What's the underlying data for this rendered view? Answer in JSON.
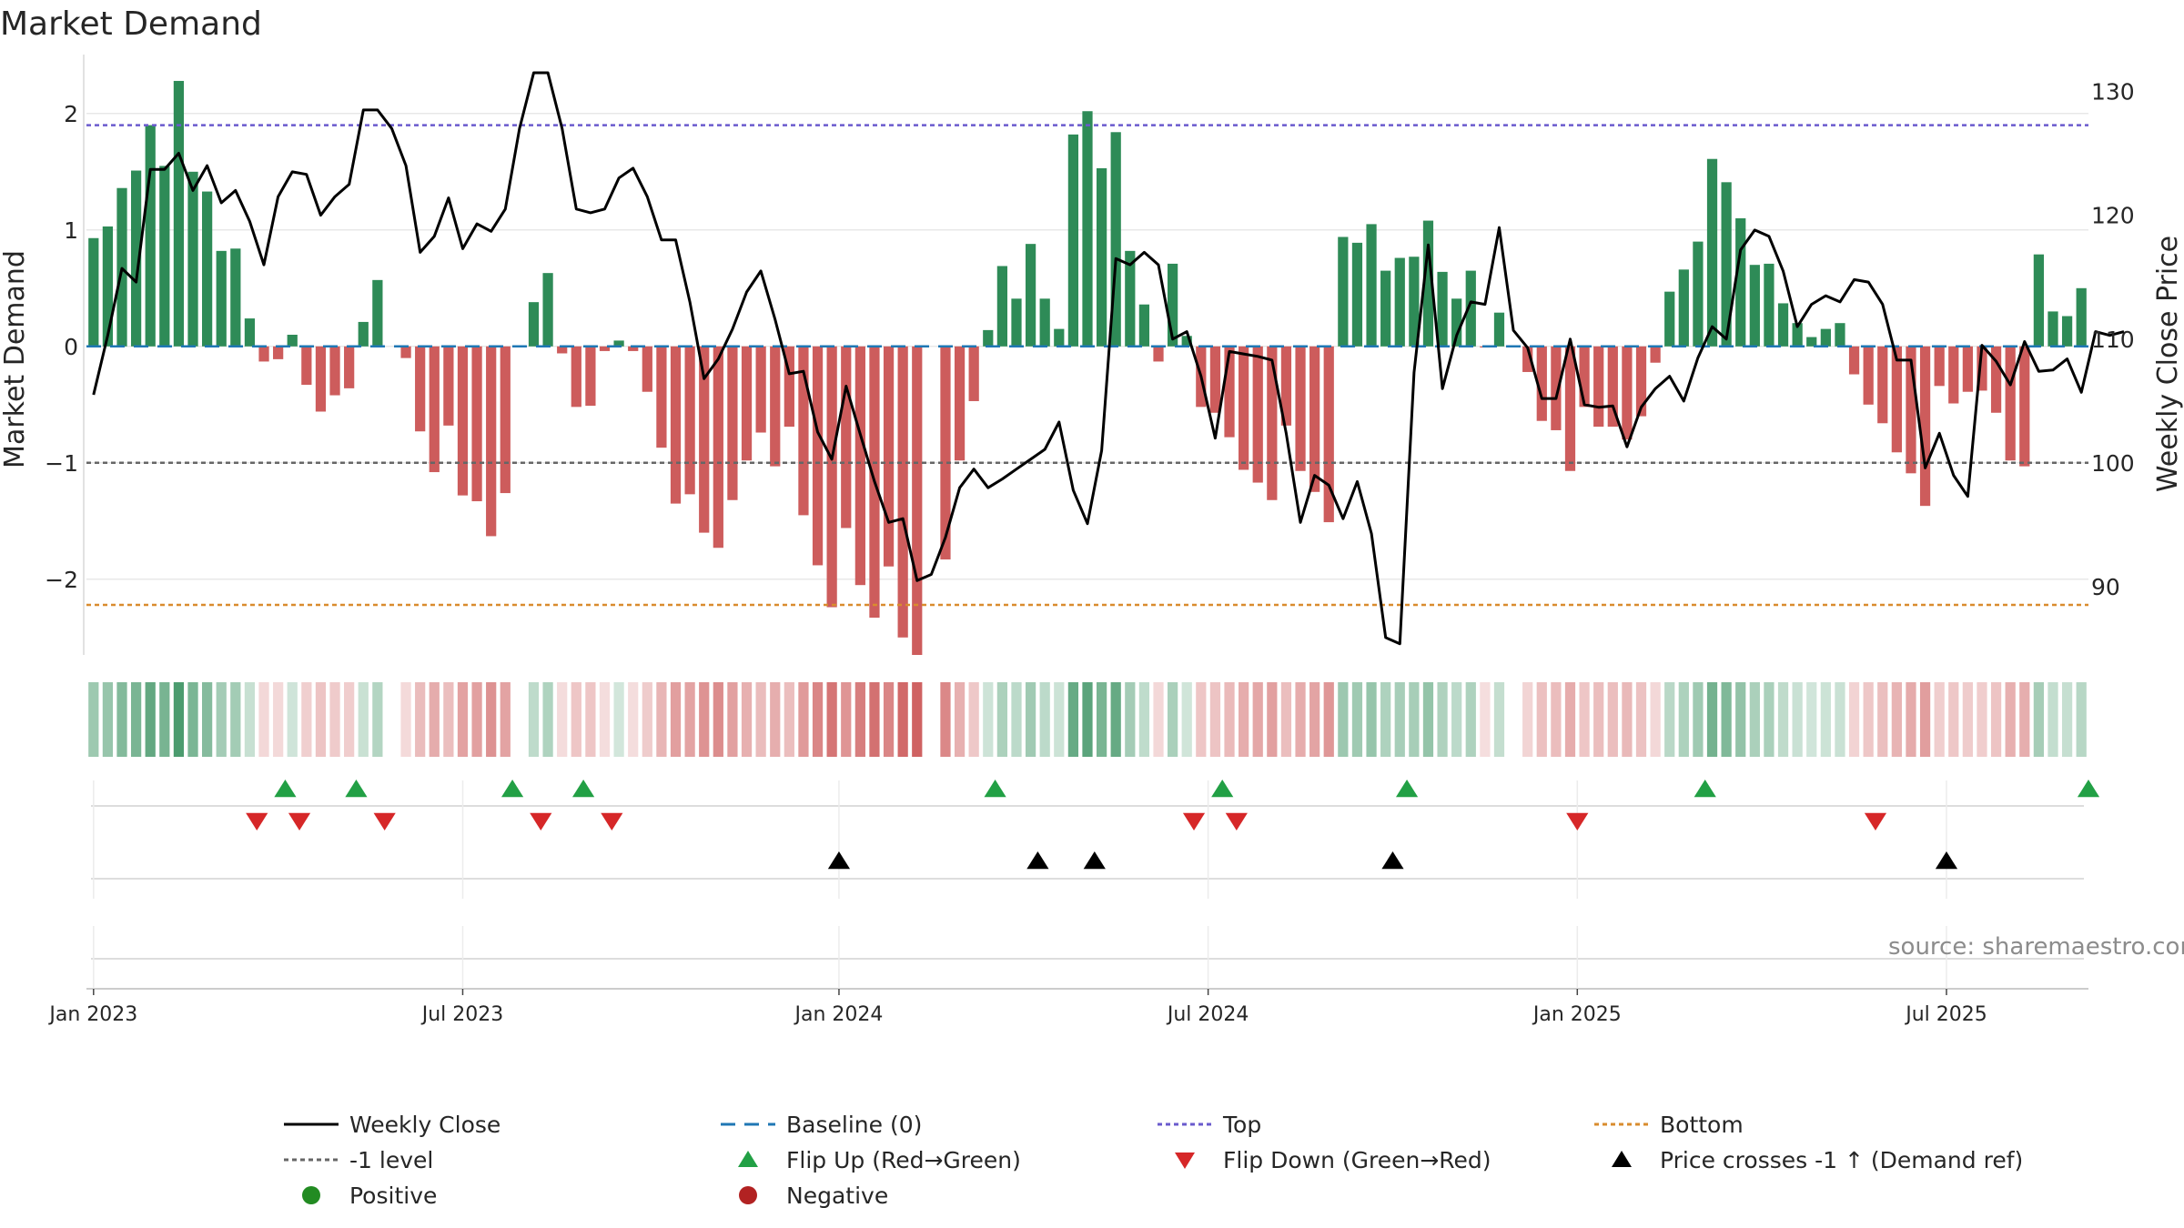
{
  "chart_data": {
    "type": "bar",
    "title": "Market Demand",
    "ylabel_left": "Market Demand",
    "ylabel_right": "Weekly Close Price",
    "source": "source: sharemaestro.com",
    "ylim_left": [
      -2.65,
      2.35
    ],
    "ylim_right": [
      84.5,
      131.5
    ],
    "yticks_left": [
      {
        "v": 2,
        "label": "2"
      },
      {
        "v": 1,
        "label": "1"
      },
      {
        "v": 0,
        "label": "0"
      },
      {
        "v": -1,
        "label": "−1"
      },
      {
        "v": -2,
        "label": "−2"
      }
    ],
    "yticks_right": [
      {
        "v": 130,
        "label": "130"
      },
      {
        "v": 120,
        "label": "120"
      },
      {
        "v": 110,
        "label": "110"
      },
      {
        "v": 100,
        "label": "100"
      },
      {
        "v": 90,
        "label": "90"
      }
    ],
    "xticks": [
      {
        "week": 1,
        "label": "Jan 2023"
      },
      {
        "week": 27,
        "label": "Jul 2023"
      },
      {
        "week": 53.5,
        "label": "Jan 2024"
      },
      {
        "week": 79.5,
        "label": "Jul 2024"
      },
      {
        "week": 105.5,
        "label": "Jan 2025"
      },
      {
        "week": 131.5,
        "label": "Jul 2025"
      }
    ],
    "reference_lines": {
      "top": 1.9,
      "minus_one": -1.0,
      "baseline": 0,
      "bottom": -2.22
    },
    "colors": {
      "positive": "#2e8b57",
      "negative": "#cd5c5c",
      "price": "#000000",
      "top": "#6a5acd",
      "bottom": "#d98c2e",
      "minus_one": "#666666",
      "baseline": "#1f77b4",
      "flip_up": "#22a045",
      "flip_down": "#d62728",
      "cross": "#000000",
      "dot_positive": "#228b22",
      "dot_negative": "#b22222"
    },
    "series": [
      {
        "name": "Market Demand",
        "values": [
          0.93,
          1.03,
          1.36,
          1.51,
          1.9,
          1.55,
          2.28,
          1.5,
          1.33,
          0.82,
          0.84,
          0.24,
          -0.13,
          -0.11,
          0.1,
          -0.33,
          -0.56,
          -0.42,
          -0.36,
          0.21,
          0.57,
          0.0,
          -0.1,
          -0.73,
          -1.08,
          -0.68,
          -1.28,
          -1.33,
          -1.63,
          -1.26,
          0.0,
          0.38,
          0.63,
          -0.06,
          -0.52,
          -0.51,
          -0.04,
          0.05,
          -0.04,
          -0.39,
          -0.87,
          -1.35,
          -1.27,
          -1.6,
          -1.73,
          -1.32,
          -0.98,
          -0.74,
          -1.03,
          -0.69,
          -1.45,
          -1.88,
          -2.24,
          -1.56,
          -2.05,
          -2.33,
          -1.89,
          -2.5,
          -2.65,
          0.0,
          -1.83,
          -0.98,
          -0.47,
          0.14,
          0.69,
          0.41,
          0.88,
          0.41,
          0.15,
          1.82,
          2.02,
          1.53,
          1.84,
          0.82,
          0.36,
          -0.13,
          0.71,
          0.09,
          -0.52,
          -0.57,
          -0.78,
          -1.06,
          -1.17,
          -1.32,
          -0.68,
          -1.07,
          -1.25,
          -1.51,
          0.94,
          0.89,
          1.05,
          0.65,
          0.76,
          0.77,
          1.08,
          0.64,
          0.41,
          0.65,
          -0.01,
          0.29,
          0.0,
          -0.22,
          -0.64,
          -0.72,
          -1.07,
          -0.52,
          -0.69,
          -0.69,
          -0.8,
          -0.6,
          -0.14,
          0.47,
          0.66,
          0.9,
          1.61,
          1.41,
          1.1,
          0.7,
          0.71,
          0.37,
          0.2,
          0.08,
          0.15,
          0.2,
          -0.24,
          -0.5,
          -0.66,
          -0.91,
          -1.09,
          -1.37,
          -0.34,
          -0.49,
          -0.39,
          -0.38,
          -0.57,
          -0.98,
          -1.03,
          0.79,
          0.3,
          0.26,
          0.5
        ]
      },
      {
        "name": "Weekly Close",
        "values": [
          105.5,
          110.3,
          115.7,
          114.6,
          123.7,
          123.7,
          125.0,
          122.0,
          124.0,
          121.0,
          122.0,
          119.5,
          116.0,
          121.5,
          123.5,
          123.3,
          120.0,
          121.5,
          122.5,
          128.5,
          128.5,
          127.0,
          124.0,
          117.0,
          118.3,
          121.4,
          117.3,
          119.3,
          118.7,
          120.5,
          127.0,
          131.5,
          131.5,
          127.0,
          120.5,
          120.2,
          120.5,
          123.0,
          123.8,
          121.5,
          118.0,
          118.0,
          113.0,
          106.8,
          108.4,
          110.8,
          113.8,
          115.5,
          111.6,
          107.2,
          107.4,
          102.5,
          100.3,
          106.2,
          102.3,
          98.5,
          95.2,
          95.5,
          90.5,
          91.0,
          94.0,
          98.0,
          99.5,
          98.0,
          98.7,
          99.5,
          100.3,
          101.1,
          103.3,
          97.8,
          95.1,
          101.0,
          116.5,
          116.0,
          117.0,
          116.0,
          110.0,
          110.6,
          107.0,
          102.0,
          109.0,
          108.8,
          108.6,
          108.3,
          102.4,
          95.2,
          99.0,
          98.2,
          95.5,
          98.5,
          94.3,
          85.9,
          85.4,
          107.3,
          117.6,
          106.0,
          110.3,
          113.0,
          112.8,
          119.0,
          110.7,
          109.3,
          105.2,
          105.2,
          110.0,
          104.7,
          104.5,
          104.6,
          101.3,
          104.5,
          106.0,
          107.0,
          105.0,
          108.5,
          111.0,
          110.0,
          117.2,
          118.8,
          118.3,
          115.5,
          111.0,
          112.8,
          113.5,
          113.0,
          114.8,
          114.6,
          112.8,
          108.3,
          108.3,
          99.6,
          102.4,
          99.0,
          97.3,
          109.5,
          108.2,
          106.3,
          109.8,
          107.4,
          107.5,
          108.4,
          105.7,
          110.6,
          110.3,
          110.6
        ]
      }
    ],
    "flip_up_weeks": [
      14.5,
      19.5,
      30.5,
      35.5,
      64.5,
      80.5,
      93.5,
      114.5,
      141.5
    ],
    "flip_down_weeks": [
      12.5,
      15.5,
      21.5,
      32.5,
      37.5,
      78.5,
      81.5,
      105.5,
      126.5
    ],
    "price_cross_weeks": [
      53.5,
      67.5,
      71.5,
      92.5,
      131.5
    ],
    "legend": [
      {
        "label": "Weekly Close",
        "kind": "solid-line"
      },
      {
        "label": "Baseline (0)",
        "kind": "dashed-line"
      },
      {
        "label": "Top",
        "kind": "dotted-line-top"
      },
      {
        "label": "Bottom",
        "kind": "dotted-line-bottom"
      },
      {
        "label": "-1 level",
        "kind": "dotted-line-grey"
      },
      {
        "label": "Flip Up (Red→Green)",
        "kind": "triangle-up-green"
      },
      {
        "label": "Flip Down (Green→Red)",
        "kind": "triangle-down-red"
      },
      {
        "label": "Price crosses -1 ↑ (Demand ref)",
        "kind": "triangle-up-black"
      },
      {
        "label": "Positive",
        "kind": "dot-green"
      },
      {
        "label": "Negative",
        "kind": "dot-red"
      }
    ]
  }
}
